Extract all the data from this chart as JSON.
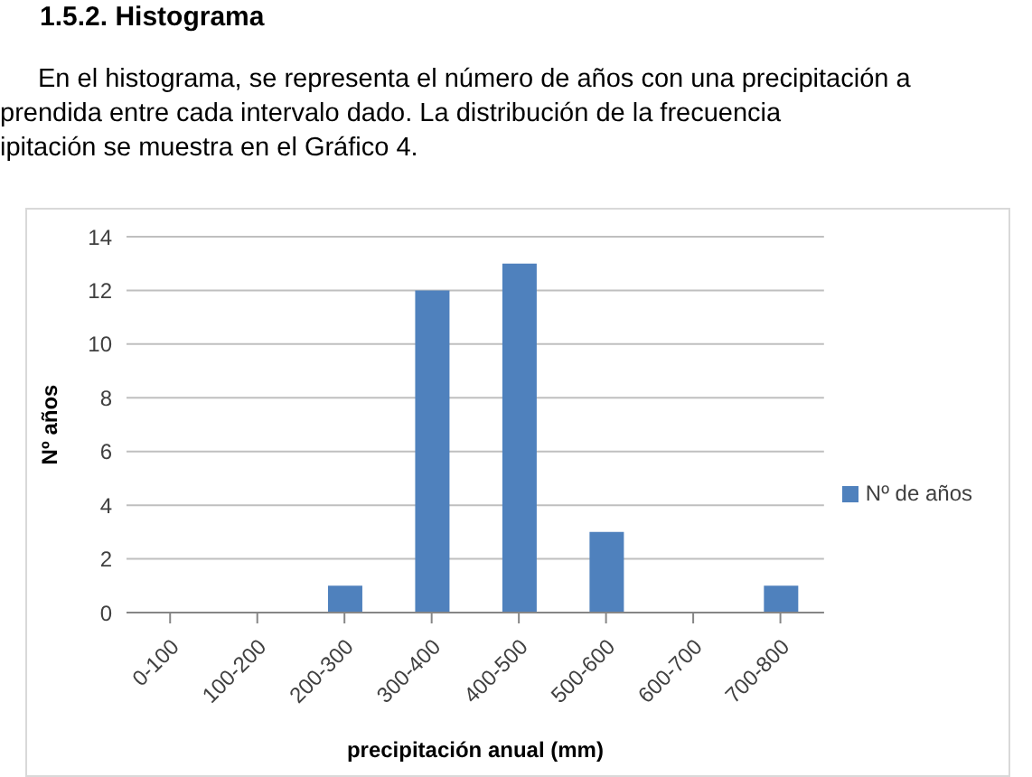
{
  "chart_data": {
    "type": "bar",
    "title": "1.5.2. Histograma",
    "annotations": [
      "En el histograma, se representa el número de años con una precipitación a",
      "prendida entre cada intervalo dado. La distribución de la frecuencia",
      "ipitación se muestra en el Gráfico 4."
    ],
    "categories": [
      "0-100",
      "100-200",
      "200-300",
      "300-400",
      "400-500",
      "500-600",
      "600-700",
      "700-800"
    ],
    "series": [
      {
        "name": "Nº de años",
        "color": "#4f81bd",
        "values": [
          0,
          0,
          1,
          12,
          13,
          3,
          0,
          1
        ]
      }
    ],
    "xlabel": "precipitación anual (mm)",
    "ylabel": "Nº años",
    "ylim": [
      0,
      14
    ],
    "yticks": [
      0,
      2,
      4,
      6,
      8,
      10,
      12,
      14
    ],
    "grid": "y",
    "legend": "right"
  }
}
